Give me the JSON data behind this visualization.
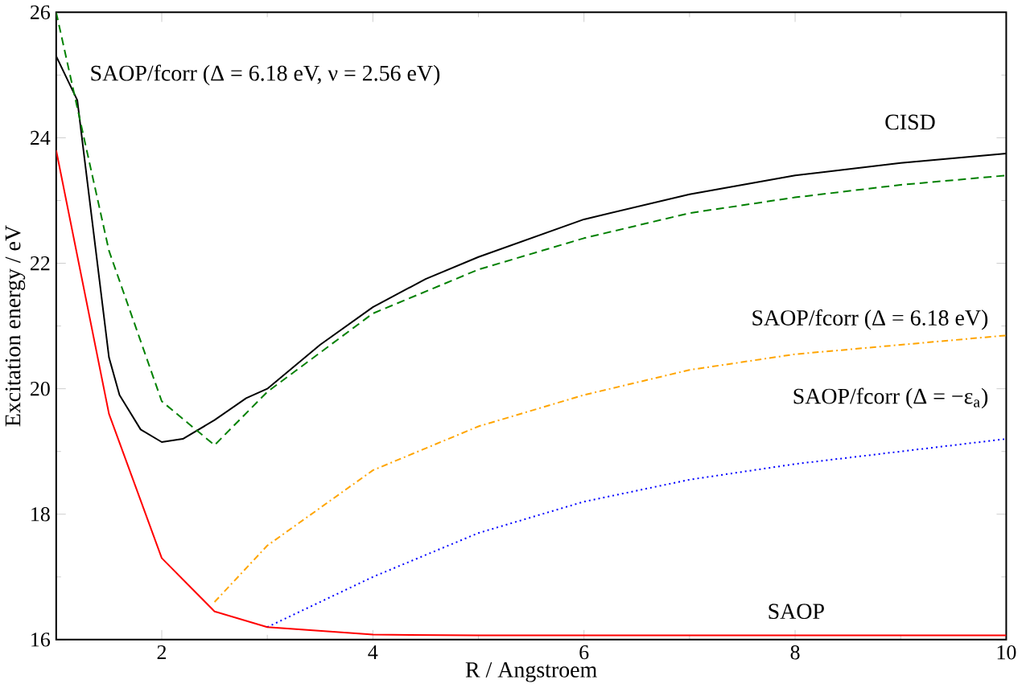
{
  "chart_data": {
    "type": "line",
    "xlabel": "R / Angstroem",
    "ylabel": "Excitation energy / eV",
    "xlim": [
      1,
      10
    ],
    "ylim": [
      16,
      26
    ],
    "xticks": [
      2,
      4,
      6,
      8,
      10
    ],
    "yticks": [
      16,
      18,
      20,
      22,
      24,
      26
    ],
    "grid": false,
    "legend": false,
    "series": [
      {
        "name": "CISD",
        "color": "#000000",
        "line_style": "solid",
        "x": [
          1,
          1.2,
          1.5,
          1.6,
          1.8,
          2,
          2.2,
          2.5,
          2.8,
          3,
          3.5,
          4,
          4.5,
          5,
          6,
          7,
          8,
          9,
          10
        ],
        "values": [
          25.3,
          24.6,
          20.5,
          19.9,
          19.35,
          19.15,
          19.2,
          19.5,
          19.85,
          20,
          20.7,
          21.3,
          21.75,
          22.1,
          22.7,
          23.1,
          23.4,
          23.6,
          23.75
        ]
      },
      {
        "name": "SAOP/fcorr (Δ = 6.18 eV, ν = 2.56 eV)",
        "color": "#008000",
        "line_style": "dashed",
        "x": [
          1,
          1.5,
          2,
          2.5,
          3,
          4,
          5,
          6,
          7,
          8,
          9,
          10
        ],
        "values": [
          26,
          22.2,
          19.8,
          19.1,
          19.95,
          21.2,
          21.9,
          22.4,
          22.8,
          23.05,
          23.25,
          23.4
        ]
      },
      {
        "name": "SAOP/fcorr (Δ = 6.18 eV)",
        "color": "#ffa500",
        "line_style": "dashdot",
        "x": [
          2.5,
          3,
          4,
          5,
          6,
          7,
          8,
          9,
          10
        ],
        "values": [
          16.6,
          17.5,
          18.7,
          19.4,
          19.9,
          20.3,
          20.55,
          20.7,
          20.85
        ]
      },
      {
        "name": "SAOP/fcorr (Δ = −ε$_{a}$)",
        "color": "#0000ff",
        "line_style": "dotted",
        "x": [
          3,
          4,
          5,
          6,
          7,
          8,
          9,
          10
        ],
        "values": [
          16.2,
          17.0,
          17.7,
          18.2,
          18.55,
          18.8,
          19.0,
          19.2
        ]
      },
      {
        "name": "SAOP",
        "color": "#ff0000",
        "line_style": "solid",
        "x": [
          1,
          1.5,
          2,
          2.5,
          3,
          4,
          5,
          6,
          7,
          8,
          9,
          10
        ],
        "values": [
          23.8,
          19.6,
          17.3,
          16.45,
          16.2,
          16.08,
          16.07,
          16.07,
          16.07,
          16.07,
          16.07,
          16.07
        ]
      }
    ]
  }
}
